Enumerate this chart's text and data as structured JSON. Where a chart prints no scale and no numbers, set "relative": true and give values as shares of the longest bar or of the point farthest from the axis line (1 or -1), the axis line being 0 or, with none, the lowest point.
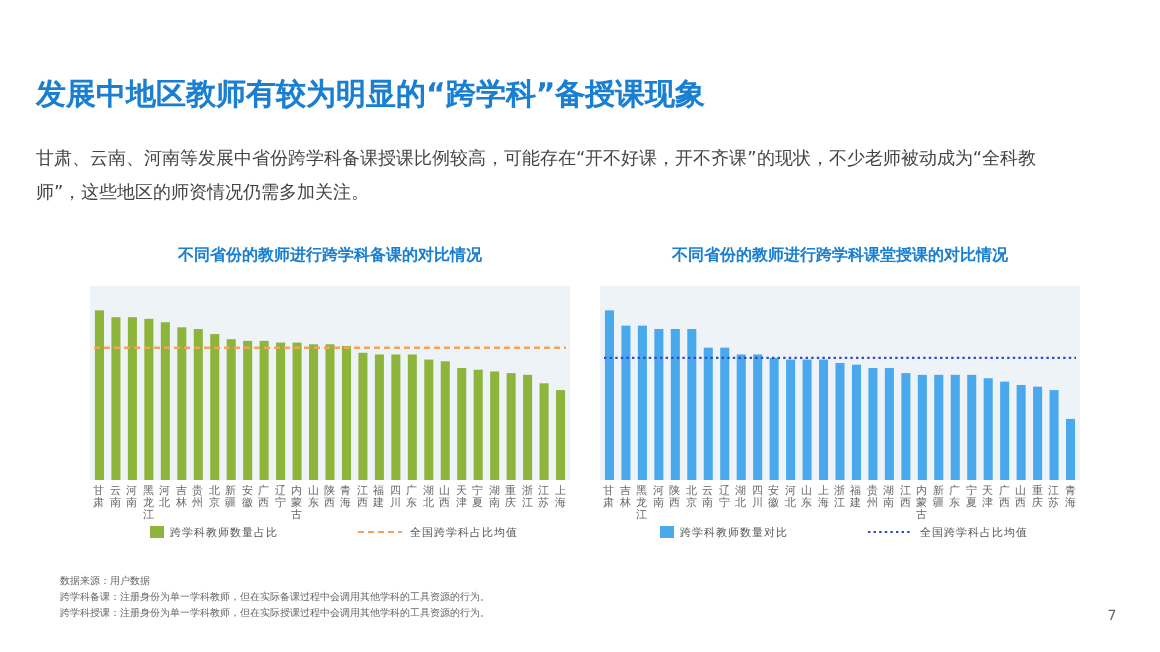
{
  "chart_data": [
    {
      "type": "other",
      "title": "发展中地区教师有较为明显的“跨学科”备授课现象",
      "annotations": [
        "甘肃、云南、河南等发展中省份跨学科备课授课比例较高，可能存在“开不好课，开不齐课”的现状，不少老师被动成为“全科教师”，这些地区的师资情况仍需多加关注。",
        "数据来源：用户数据",
        "跨学科备课：注册身份为单一学科教师，但在实际备课过程中会调用其他学科的工具资源的行为。",
        "跨学科授课：注册身份为单一学科教师，但在实际授课过程中会调用其他学科的工具资源的行为。",
        "7"
      ]
    },
    {
      "type": "bar",
      "title": "不同省份的教师进行跨学科备课的对比情况",
      "relative": true,
      "legend": "bottom",
      "categories": [
        "甘肃",
        "云南",
        "河南",
        "黑龙江",
        "河北",
        "吉林",
        "贵州",
        "北京",
        "新疆",
        "安徽",
        "广西",
        "辽宁",
        "内蒙古",
        "山东",
        "陕西",
        "青海",
        "江西",
        "福建",
        "四川",
        "广东",
        "湖北",
        "山西",
        "天津",
        "宁夏",
        "湖南",
        "重庆",
        "浙江",
        "江苏",
        "上海"
      ],
      "series": [
        {
          "name": "跨学科教师数量占比",
          "color": "#8db53c",
          "values": [
            1,
            0.96,
            0.96,
            0.95,
            0.93,
            0.9,
            0.89,
            0.86,
            0.83,
            0.82,
            0.82,
            0.81,
            0.81,
            0.8,
            0.8,
            0.79,
            0.75,
            0.74,
            0.74,
            0.74,
            0.71,
            0.7,
            0.66,
            0.65,
            0.64,
            0.63,
            0.62,
            0.57,
            0.53
          ]
        }
      ],
      "ref_lines": [
        {
          "axis": "y",
          "value": 0.78,
          "label": "全国跨学科占比均值",
          "color": "#f5a35a",
          "line_style": "dashed"
        }
      ]
    },
    {
      "type": "bar",
      "title": "不同省份的教师进行跨学科课堂授课的对比情况",
      "relative": true,
      "legend": "bottom",
      "categories": [
        "甘肃",
        "吉林",
        "黑龙江",
        "河南",
        "陕西",
        "北京",
        "云南",
        "辽宁",
        "湖北",
        "四川",
        "安徽",
        "河北",
        "山东",
        "上海",
        "浙江",
        "福建",
        "贵州",
        "湖南",
        "江西",
        "内蒙古",
        "新疆",
        "广东",
        "宁夏",
        "天津",
        "广西",
        "山西",
        "重庆",
        "江苏",
        "青海"
      ],
      "series": [
        {
          "name": "跨学科教师数量对比",
          "color": "#4aa9ec",
          "values": [
            1,
            0.91,
            0.91,
            0.89,
            0.89,
            0.89,
            0.78,
            0.78,
            0.74,
            0.74,
            0.72,
            0.71,
            0.71,
            0.71,
            0.69,
            0.68,
            0.66,
            0.66,
            0.63,
            0.62,
            0.62,
            0.62,
            0.62,
            0.6,
            0.58,
            0.56,
            0.55,
            0.53,
            0.36
          ]
        }
      ],
      "ref_lines": [
        {
          "axis": "y",
          "value": 0.72,
          "label": "全国跨学科占比均值",
          "color": "#3348c8",
          "line_style": "dotted"
        }
      ]
    }
  ]
}
